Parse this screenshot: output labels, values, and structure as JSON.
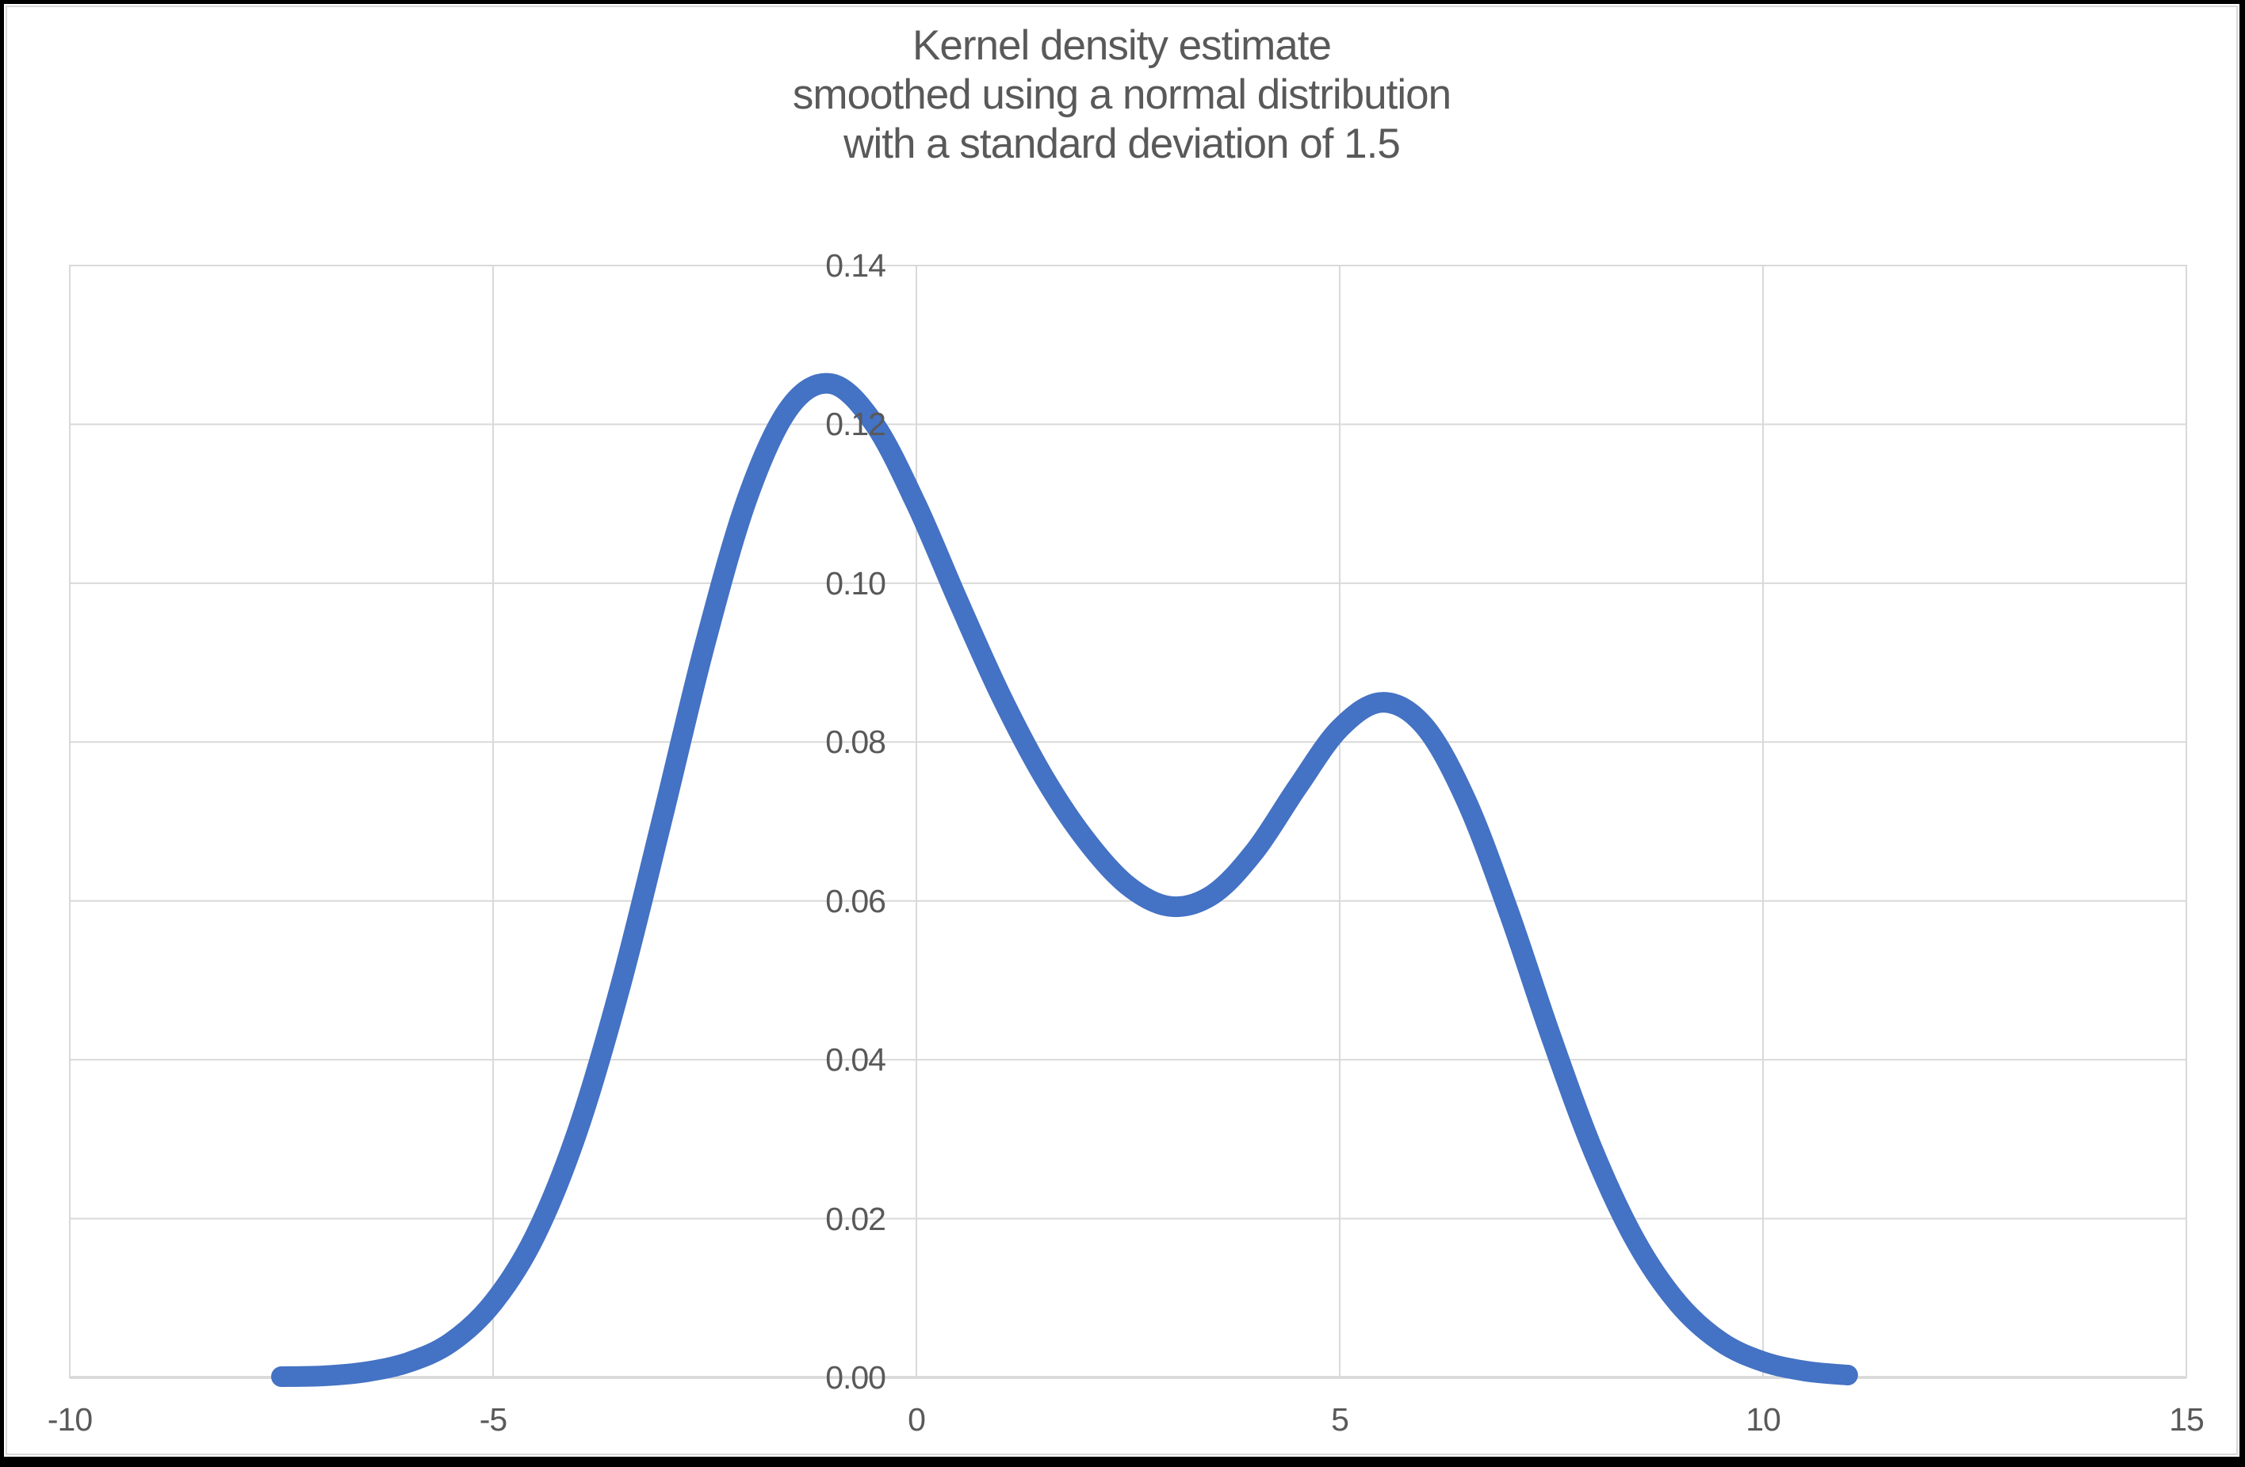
{
  "title": {
    "line1": "Kernel density estimate",
    "line2": "smoothed using a normal distribution",
    "line3": "with a standard deviation of 1.5"
  },
  "chart_data": {
    "type": "line",
    "title": "Kernel density estimate smoothed using a normal distribution with a standard deviation of 1.5",
    "xlabel": "",
    "ylabel": "",
    "xlim": [
      -10,
      15
    ],
    "ylim": [
      0,
      0.14
    ],
    "x_ticks": [
      "-10",
      "-5",
      "0",
      "5",
      "10",
      "15"
    ],
    "y_ticks": [
      "0.00",
      "0.02",
      "0.04",
      "0.06",
      "0.08",
      "0.10",
      "0.12",
      "0.14"
    ],
    "grid": true,
    "legend": false,
    "series": [
      {
        "name": "kernel density estimate",
        "x": [
          -7.5,
          -7.0,
          -6.5,
          -6.0,
          -5.5,
          -5.0,
          -4.5,
          -4.0,
          -3.5,
          -3.0,
          -2.5,
          -2.0,
          -1.5,
          -1.0,
          -0.5,
          0.0,
          0.5,
          1.0,
          1.5,
          2.0,
          2.5,
          3.0,
          3.5,
          4.0,
          4.5,
          5.0,
          5.5,
          6.0,
          6.5,
          7.0,
          7.5,
          8.0,
          8.5,
          9.0,
          9.5,
          10.0,
          10.5,
          11.0
        ],
        "y": [
          0.0001,
          0.0002,
          0.0007,
          0.0019,
          0.0044,
          0.0094,
          0.0179,
          0.0311,
          0.0491,
          0.0704,
          0.0922,
          0.1106,
          0.1221,
          0.1251,
          0.1201,
          0.1099,
          0.0976,
          0.0858,
          0.0757,
          0.0677,
          0.0619,
          0.0593,
          0.0608,
          0.0663,
          0.0743,
          0.0817,
          0.085,
          0.082,
          0.0725,
          0.0585,
          0.0428,
          0.0284,
          0.0171,
          0.0093,
          0.0045,
          0.002,
          0.0008,
          0.0003
        ]
      }
    ],
    "curve_features": {
      "first_peak": {
        "x": -1.0,
        "y": 0.125
      },
      "valley": {
        "x": 3.1,
        "y": 0.059
      },
      "second_peak": {
        "x": 5.5,
        "y": 0.085
      },
      "curve_start_x": -7.5,
      "curve_end_x": 11.0
    }
  },
  "colors": {
    "line": "#4472C4",
    "gridline": "#D9D9D9",
    "axis_line": "#BFBFBF",
    "text": "#595959",
    "background": "#FFFFFF",
    "frame": "#000000"
  }
}
